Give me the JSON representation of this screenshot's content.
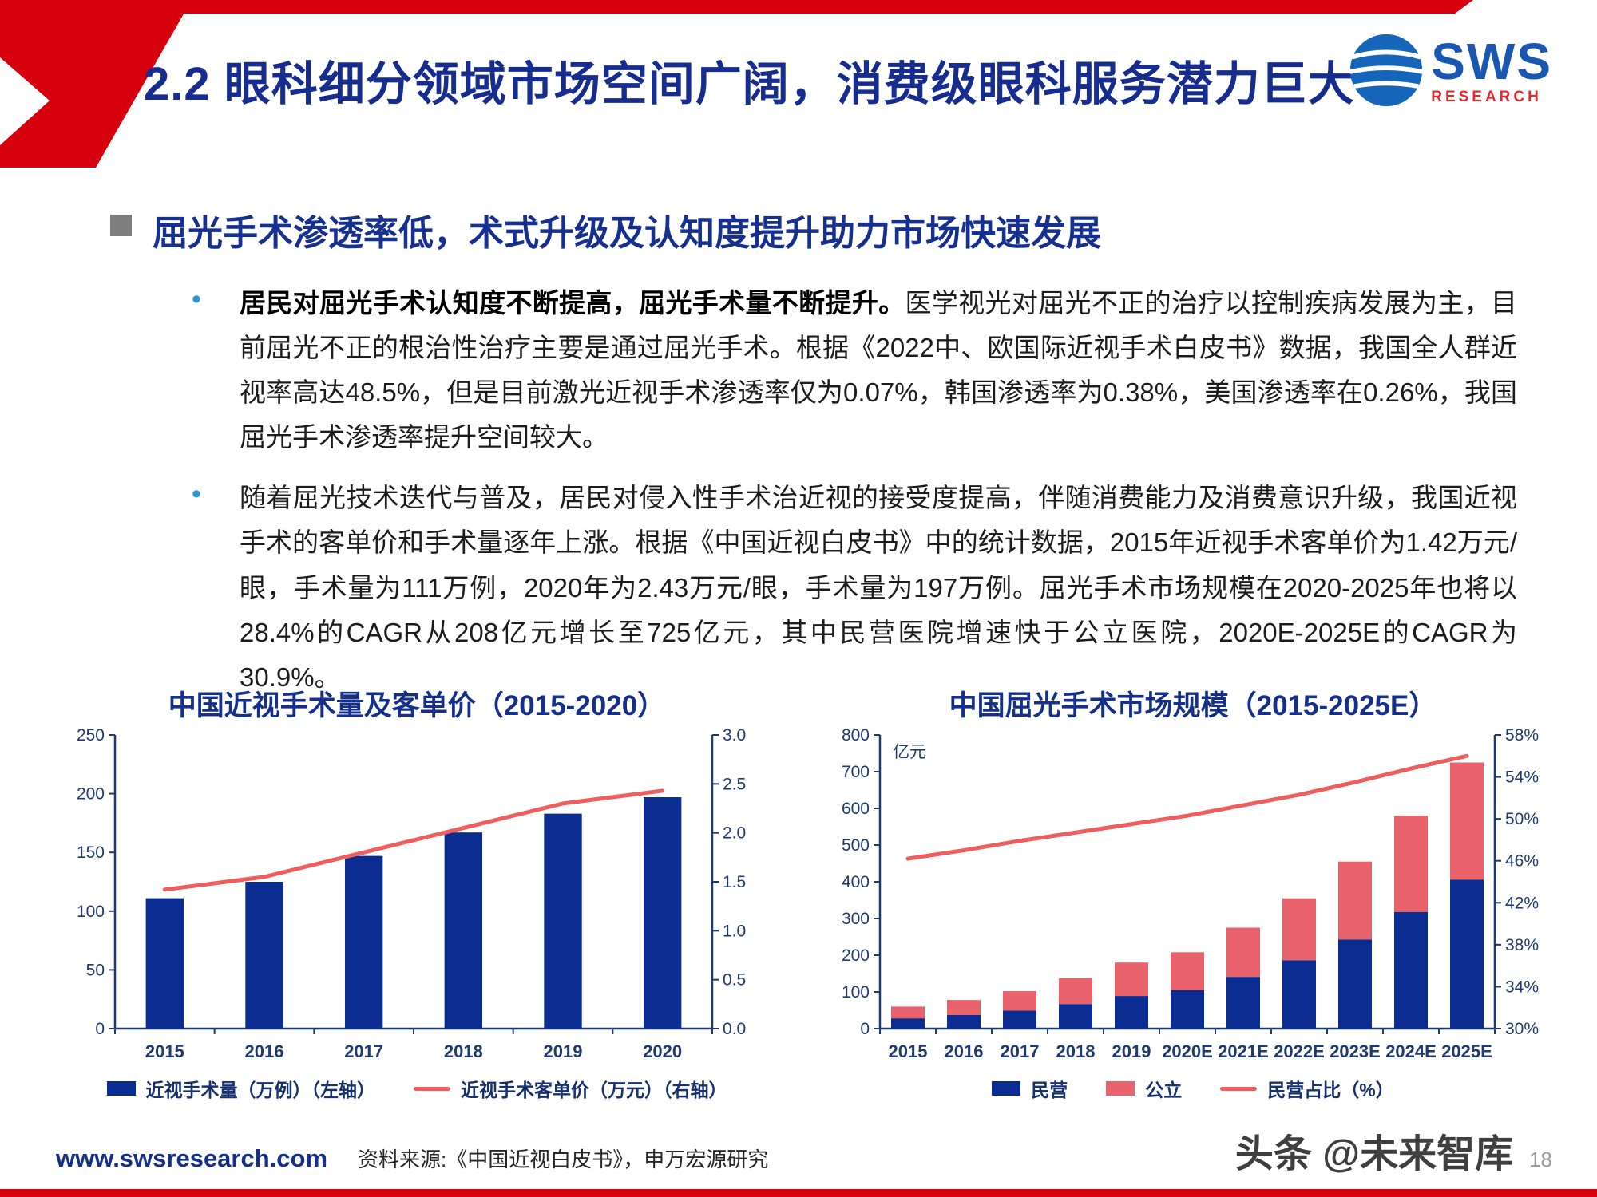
{
  "header": {
    "title": "2.2 眼科细分领域市场空间广阔，消费级眼科服务潜力巨大",
    "logo": {
      "text": "SWS",
      "subtext": "RESEARCH"
    }
  },
  "section": {
    "bullet_icon": "•",
    "heading": "屈光手术渗透率低，术式升级及认知度提升助力市场快速发展",
    "bullets": [
      {
        "lead": "居民对屈光手术认知度不断提高，屈光手术量不断提升。",
        "text": "医学视光对屈光不正的治疗以控制疾病发展为主，目前屈光不正的根治性治疗主要是通过屈光手术。根据《2022中、欧国际近视手术白皮书》数据，我国全人群近视率高达48.5%，但是目前激光近视手术渗透率仅为0.07%，韩国渗透率为0.38%，美国渗透率在0.26%，我国屈光手术渗透率提升空间较大。"
      },
      {
        "lead": "",
        "text": "随着屈光技术迭代与普及，居民对侵入性手术治近视的接受度提高，伴随消费能力及消费意识升级，我国近视手术的客单价和手术量逐年上涨。根据《中国近视白皮书》中的统计数据，2015年近视手术客单价为1.42万元/眼，手术量为111万例，2020年为2.43万元/眼，手术量为197万例。屈光手术市场规模在2020-2025年也将以28.4%的CAGR从208亿元增长至725亿元，其中民营医院增速快于公立医院，2020E-2025E的CAGR为30.9%。"
      }
    ]
  },
  "chart_data": [
    {
      "type": "bar",
      "title": "中国近视手术量及客单价（2015-2020）",
      "categories": [
        "2015",
        "2016",
        "2017",
        "2018",
        "2019",
        "2020"
      ],
      "series": [
        {
          "kind": "bar",
          "name": "近视手术量（万例）（左轴）",
          "axis": "left",
          "color": "#0b2d91",
          "values": [
            111,
            125,
            147,
            167,
            183,
            197
          ]
        },
        {
          "kind": "line",
          "name": "近视手术客单价（万元）（右轴）",
          "axis": "right",
          "color": "#ef5e5e",
          "values": [
            1.42,
            1.55,
            1.8,
            2.05,
            2.3,
            2.43
          ]
        }
      ],
      "left_axis": {
        "min": 0,
        "max": 250,
        "step": 50,
        "ticks": [
          "0",
          "50",
          "100",
          "150",
          "200",
          "250"
        ]
      },
      "right_axis": {
        "min": 0,
        "max": 3,
        "step": 0.5,
        "ticks": [
          "0.0",
          "0.5",
          "1.0",
          "1.5",
          "2.0",
          "2.5",
          "3.0"
        ]
      },
      "grid": false,
      "legend_position": "bottom"
    },
    {
      "type": "bar",
      "stacked": true,
      "title": "中国屈光手术市场规模（2015-2025E）",
      "unit_label": "亿元",
      "categories": [
        "2015",
        "2016",
        "2017",
        "2018",
        "2019",
        "2020E",
        "2021E",
        "2022E",
        "2023E",
        "2024E",
        "2025E"
      ],
      "series": [
        {
          "kind": "bar",
          "name": "民营",
          "axis": "left",
          "color": "#0b2d91",
          "values": [
            28,
            37,
            49,
            67,
            89,
            105,
            141,
            186,
            243,
            318,
            406
          ]
        },
        {
          "kind": "bar",
          "name": "公立",
          "axis": "left",
          "color": "#e8636b",
          "values": [
            32,
            41,
            53,
            70,
            91,
            103,
            134,
            169,
            212,
            262,
            319
          ]
        },
        {
          "kind": "line",
          "name": "民营占比（%）",
          "axis": "right",
          "color": "#ef5e5e",
          "values": [
            46.2,
            47.0,
            47.9,
            48.7,
            49.5,
            50.3,
            51.3,
            52.3,
            53.5,
            54.8,
            56.0
          ]
        }
      ],
      "left_axis": {
        "min": 0,
        "max": 800,
        "step": 100,
        "ticks": [
          "0",
          "100",
          "200",
          "300",
          "400",
          "500",
          "600",
          "700",
          "800"
        ]
      },
      "right_axis": {
        "min": 30,
        "max": 58,
        "step": 4,
        "ticks": [
          "30%",
          "34%",
          "38%",
          "42%",
          "46%",
          "50%",
          "54%",
          "58%"
        ]
      },
      "grid": false,
      "legend_position": "bottom"
    }
  ],
  "footer": {
    "url": "www.swsresearch.com",
    "source": "资料来源:《中国近视白皮书》，申万宏源研究",
    "watermark": "头条 @未来智库",
    "page": "18"
  },
  "colors": {
    "accent_red": "#d7000f",
    "title_navy": "#162c8e",
    "bar_blue": "#0b2d91",
    "line_red": "#ef5e5e",
    "public_pink": "#e8636b"
  }
}
